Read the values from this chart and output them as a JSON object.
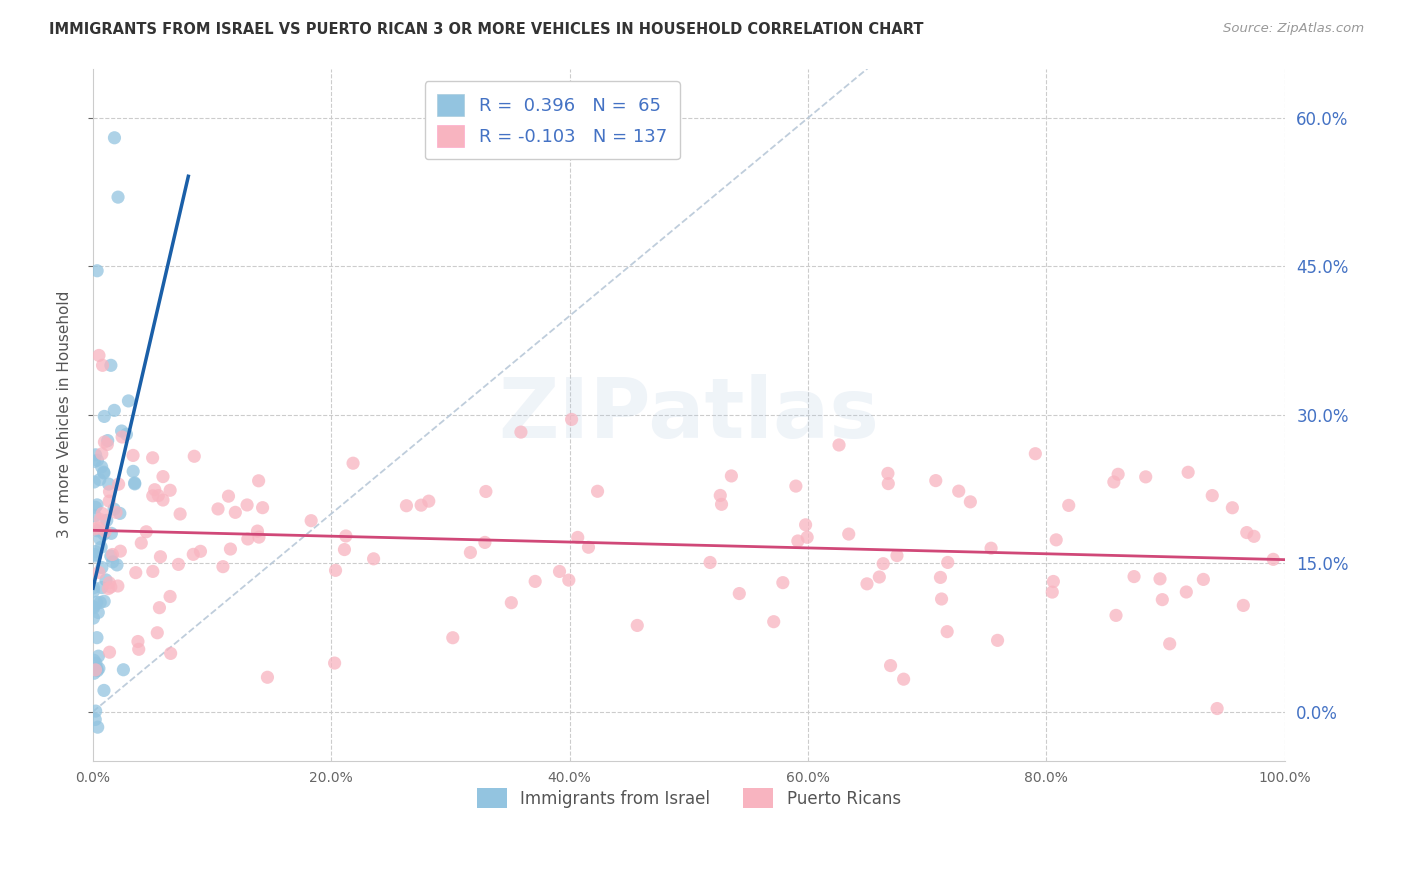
{
  "title": "IMMIGRANTS FROM ISRAEL VS PUERTO RICAN 3 OR MORE VEHICLES IN HOUSEHOLD CORRELATION CHART",
  "source": "Source: ZipAtlas.com",
  "ylabel": "3 or more Vehicles in Household",
  "xlim": [
    0,
    100
  ],
  "ylim": [
    -5,
    65
  ],
  "yticks": [
    0,
    15,
    30,
    45,
    60
  ],
  "xticks": [
    0,
    20,
    40,
    60,
    80,
    100
  ],
  "legend1_label": "Immigrants from Israel",
  "legend2_label": "Puerto Ricans",
  "r1": 0.396,
  "n1": 65,
  "r2": -0.103,
  "n2": 137,
  "color1": "#93c4e0",
  "color2": "#f8b4c0",
  "trend1_color": "#1a5fa8",
  "trend2_color": "#d04878",
  "watermark": "ZIPatlas",
  "background_color": "#ffffff",
  "grid_color": "#cccccc",
  "title_color": "#333333",
  "source_color": "#999999",
  "label_color": "#4472c4",
  "tick_color": "#666666"
}
